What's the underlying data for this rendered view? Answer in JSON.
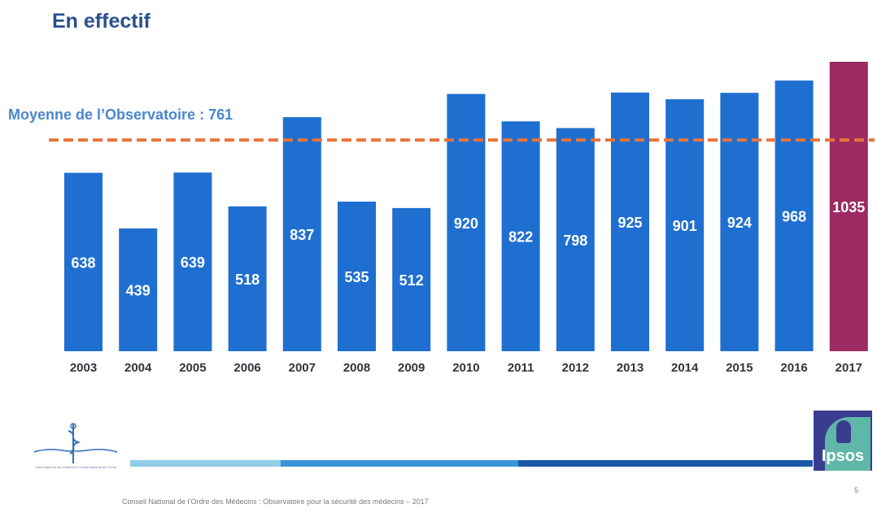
{
  "title": "En effectif",
  "average_label": "Moyenne de l’Observatoire : 761",
  "chart_data": {
    "type": "bar",
    "categories": [
      "2003",
      "2004",
      "2005",
      "2006",
      "2007",
      "2008",
      "2009",
      "2010",
      "2011",
      "2012",
      "2013",
      "2014",
      "2015",
      "2016",
      "2017"
    ],
    "values": [
      638,
      439,
      639,
      518,
      837,
      535,
      512,
      920,
      822,
      798,
      925,
      901,
      924,
      968,
      1035
    ],
    "reference_line": {
      "value": 761,
      "label": "Moyenne de l’Observatoire : 761"
    },
    "ylim": [
      0,
      1035
    ],
    "xlabel": "",
    "ylabel": "",
    "grid": false,
    "colors": {
      "bar": "#1f6fd1",
      "highlight_bar": "#9b2b62",
      "highlight_category": "2017",
      "reference_line": "#e8743b",
      "axis_text": "#33333f",
      "bar_label": "#ffffff"
    }
  },
  "logo_cnom": {
    "icon": "caduceus-icon",
    "caption": "Ordre National des Médecins Conseil National de l'Ordre"
  },
  "logo_ipsos": {
    "text": "Ipsos",
    "colors": {
      "bg": "#3a3d8f",
      "mark": "#5fb7a8"
    }
  },
  "bands": {
    "colors": [
      "#8fcce8",
      "#3a95d6",
      "#1a58a8"
    ]
  },
  "footer": "Conseil National de l’Ordre des Médecins : Observatoire pour la sécurité des médecins – 2017",
  "page_number": "5"
}
